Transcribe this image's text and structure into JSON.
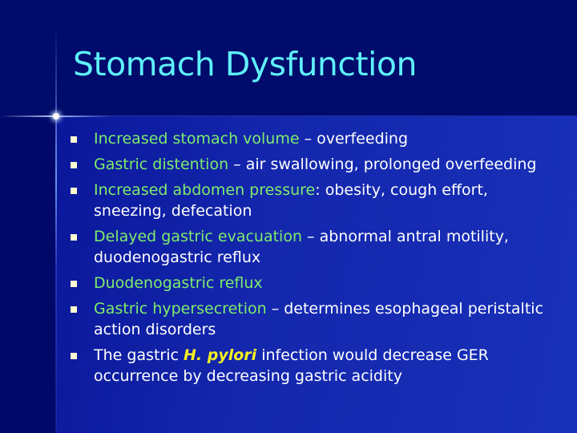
{
  "title": "Stomach Dysfunction",
  "colors": {
    "background": "#000b6c",
    "title": "#5ff0fa",
    "highlight": "#7fec6c",
    "body": "#ffffff",
    "emphasis": "#f5f020"
  },
  "bullets": [
    {
      "green": "Increased stomach volume",
      "white": " – overfeeding"
    },
    {
      "green": "Gastric distention",
      "white": " – air swallowing, prolonged overfeeding"
    },
    {
      "green": "Increased abdomen pressure",
      "white": ": obesity, cough effort, sneezing, defecation"
    },
    {
      "green": "Delayed gastric evacuation",
      "white": " – abnormal antral motility, duodenogastric reflux"
    },
    {
      "green": "Duodenogastric reflux",
      "white": ""
    },
    {
      "green": "Gastric hypersecretion",
      "white": " – determines esophageal peristaltic action disorders"
    },
    {
      "pre": "The gastric ",
      "emph": "H. pylori",
      "white": " infection would decrease GER occurrence by decreasing gastric acidity"
    }
  ]
}
